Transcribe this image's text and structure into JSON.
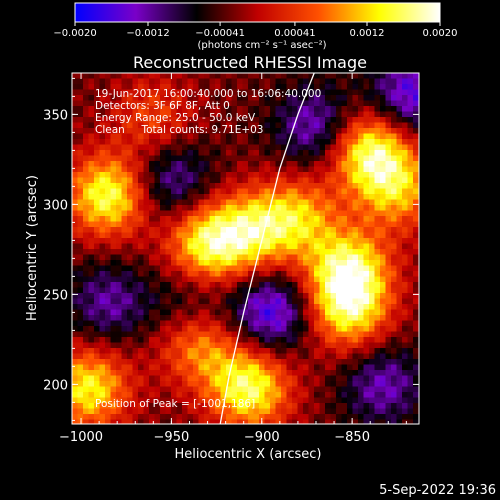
{
  "chart_data": {
    "type": "heatmap",
    "title": "Reconstructed RHESSI Image",
    "xlabel": "Heliocentric X (arcsec)",
    "ylabel": "Heliocentric Y (arcsec)",
    "xlim": [
      -1005,
      -813
    ],
    "ylim": [
      178,
      373
    ],
    "x_ticks": [
      -1000,
      -950,
      -900,
      -850
    ],
    "x_tick_labels": [
      "−1000",
      "−950",
      "−900",
      "−850"
    ],
    "y_ticks": [
      200,
      250,
      300,
      350
    ],
    "y_tick_labels": [
      "200",
      "250",
      "300",
      "350"
    ],
    "colorbar": {
      "range": [
        -0.002,
        0.002
      ],
      "ticks": [
        -0.002,
        -0.0012,
        -0.00041,
        0.00041,
        0.0012,
        0.002
      ],
      "tick_labels": [
        "−0.0020",
        "−0.0012",
        "−0.00041",
        "0.00041",
        "0.0012",
        "0.0020"
      ],
      "unit_label": "(photons cm⁻² s⁻¹ asec⁻²)",
      "colors": [
        "#0000ff",
        "#7a00c8",
        "#000000",
        "#c00000",
        "#ff5000",
        "#ffff00",
        "#ffffff"
      ]
    },
    "annotations": [
      "19-Jun-2017 16:00:40.000 to 16:06:40.000",
      "Detectors: 3F 6F 8F, Att 0",
      "Energy Range: 25.0 - 50.0 keV",
      "Clean     Total counts: 9.71E+03"
    ],
    "peak_label": "Position of Peak = [-1001,186]",
    "limb_curve": {
      "x": [
        -923,
        -918,
        -910,
        -900,
        -890,
        -880,
        -871
      ],
      "y": [
        178,
        205,
        240,
        280,
        320,
        350,
        373
      ]
    },
    "blobs": [
      {
        "x": -985,
        "y": 305,
        "v": 0.0019
      },
      {
        "x": -930,
        "y": 278,
        "v": 0.0018
      },
      {
        "x": -905,
        "y": 285,
        "v": 0.0014
      },
      {
        "x": -880,
        "y": 293,
        "v": 0.0013
      },
      {
        "x": -852,
        "y": 263,
        "v": 0.0019
      },
      {
        "x": -852,
        "y": 240,
        "v": 0.0015
      },
      {
        "x": -840,
        "y": 330,
        "v": 0.0019
      },
      {
        "x": -825,
        "y": 308,
        "v": 0.0013
      },
      {
        "x": -907,
        "y": 198,
        "v": 0.0019
      },
      {
        "x": -935,
        "y": 222,
        "v": 0.0012
      },
      {
        "x": -996,
        "y": 198,
        "v": 0.0017
      },
      {
        "x": -960,
        "y": 348,
        "v": 0.0008
      },
      {
        "x": -895,
        "y": 240,
        "v": -0.0014
      },
      {
        "x": -950,
        "y": 313,
        "v": -0.001
      },
      {
        "x": -870,
        "y": 343,
        "v": -0.0011
      },
      {
        "x": -818,
        "y": 360,
        "v": -0.0013
      },
      {
        "x": -985,
        "y": 245,
        "v": -0.0009
      },
      {
        "x": -940,
        "y": 245,
        "v": -0.0006
      },
      {
        "x": -833,
        "y": 200,
        "v": -0.001
      }
    ]
  },
  "footer": {
    "date": "5-Sep-2022 19:36"
  }
}
